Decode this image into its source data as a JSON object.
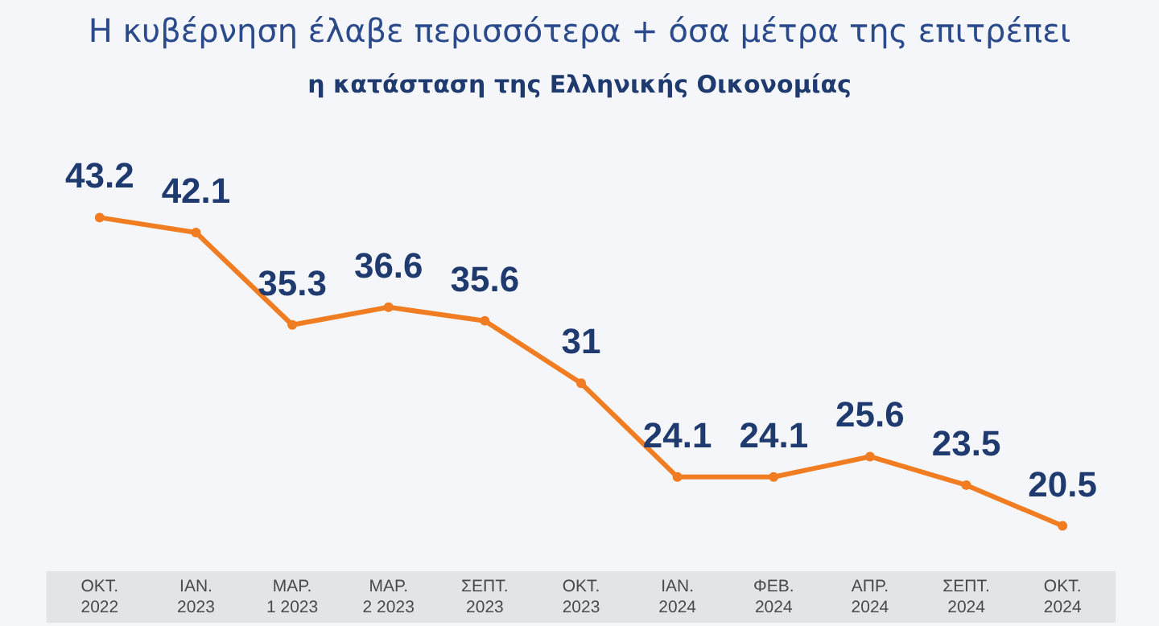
{
  "chart_data": {
    "type": "line",
    "title": "Η κυβέρνηση έλαβε περισσότερα + όσα μέτρα της επιτρέπει",
    "subtitle": "η κατάσταση της Ελληνικής Οικονομίας",
    "categories": [
      "ΟΚΤ.\n2022",
      "ΙΑΝ.\n2023",
      "ΜΑΡ.\n1 2023",
      "ΜΑΡ.\n2 2023",
      "ΣΕΠΤ.\n2023",
      "ΟΚΤ.\n2023",
      "ΙΑΝ.\n2024",
      "ΦΕΒ.\n2024",
      "ΑΠΡ.\n2024",
      "ΣΕΠΤ.\n2024",
      "ΟΚΤ.\n2024"
    ],
    "series": [
      {
        "color": "#f07d22",
        "values": [
          43.2,
          42.1,
          35.3,
          36.6,
          35.6,
          31,
          24.1,
          24.1,
          25.6,
          23.5,
          20.5
        ]
      }
    ],
    "data_labels": true,
    "marker": "circle",
    "line_style": "solid"
  }
}
